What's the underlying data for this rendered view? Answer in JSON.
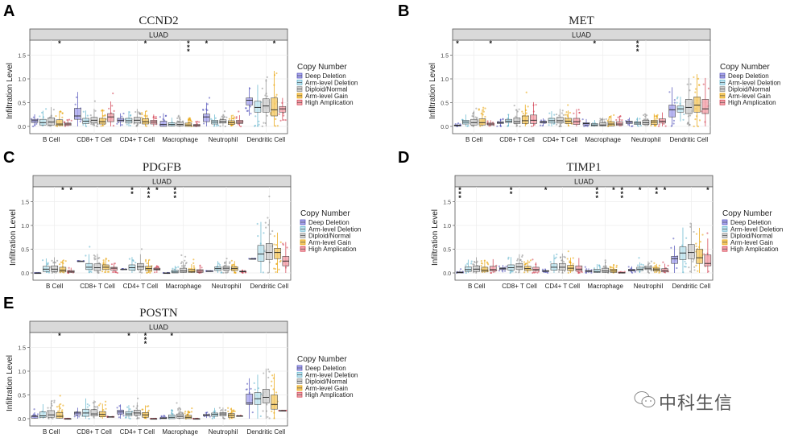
{
  "common": {
    "strip_label": "LUAD",
    "ylabel": "Infiltration Level",
    "yticks": [
      "0.0",
      "0.5",
      "1.0",
      "1.5"
    ],
    "categories": [
      "B Cell",
      "CD8+ T Cell",
      "CD4+ T Cell",
      "Macrophage",
      "Neutrophil",
      "Dendritic Cell"
    ],
    "legend_title": "Copy Number",
    "groups": [
      "Deep Deletion",
      "Arm-level Deletion",
      "Diploid/Normal",
      "Arm-level Gain",
      "High Amplication"
    ],
    "group_colors": [
      "#4b4bb8",
      "#5fb3cc",
      "#8c8c8c",
      "#e8a000",
      "#d23a4c"
    ],
    "group_fills": [
      "#a9a6ee",
      "#bfe3ee",
      "#cfcfcf",
      "#f4cb6a",
      "#f2a3ab"
    ]
  },
  "watermark": "中科生信",
  "chart_data": [
    {
      "panel": "A",
      "type": "box",
      "title": "CCND2",
      "facet": "LUAD",
      "ylabel": "Infiltration Level",
      "ylim": [
        0,
        1.8
      ],
      "categories": [
        "B Cell",
        "CD8+ T Cell",
        "CD4+ T Cell",
        "Macrophage",
        "Neutrophil",
        "Dendritic Cell"
      ],
      "boxes_q1_median_q3": [
        [
          [
            0.08,
            0.12,
            0.15
          ],
          [
            0.03,
            0.08,
            0.15
          ],
          [
            0.03,
            0.09,
            0.18
          ],
          [
            0.02,
            0.05,
            0.14
          ],
          [
            0.02,
            0.05,
            0.07
          ]
        ],
        [
          [
            0.15,
            0.22,
            0.38
          ],
          [
            0.06,
            0.11,
            0.17
          ],
          [
            0.07,
            0.13,
            0.19
          ],
          [
            0.05,
            0.1,
            0.17
          ],
          [
            0.1,
            0.2,
            0.27
          ]
        ],
        [
          [
            0.1,
            0.13,
            0.17
          ],
          [
            0.07,
            0.12,
            0.17
          ],
          [
            0.07,
            0.13,
            0.19
          ],
          [
            0.05,
            0.1,
            0.16
          ],
          [
            0.05,
            0.09,
            0.13
          ]
        ],
        [
          [
            0.0,
            0.04,
            0.11
          ],
          [
            0.01,
            0.04,
            0.08
          ],
          [
            0.01,
            0.04,
            0.09
          ],
          [
            0.0,
            0.03,
            0.07
          ],
          [
            0.0,
            0.02,
            0.04
          ]
        ],
        [
          [
            0.1,
            0.2,
            0.26
          ],
          [
            0.05,
            0.09,
            0.13
          ],
          [
            0.07,
            0.1,
            0.14
          ],
          [
            0.04,
            0.08,
            0.12
          ],
          [
            0.06,
            0.09,
            0.13
          ]
        ],
        [
          [
            0.45,
            0.55,
            0.6
          ],
          [
            0.3,
            0.4,
            0.53
          ],
          [
            0.3,
            0.43,
            0.58
          ],
          [
            0.22,
            0.35,
            0.6
          ],
          [
            0.3,
            0.37,
            0.42
          ]
        ]
      ],
      "significance": [
        {
          "category": 0,
          "group": 3,
          "label": "*"
        },
        {
          "category": 2,
          "group": 3,
          "label": "*"
        },
        {
          "category": 3,
          "group": 3,
          "label": "***"
        },
        {
          "category": 4,
          "group": 0,
          "label": "*"
        },
        {
          "category": 5,
          "group": 3,
          "label": "*"
        }
      ]
    },
    {
      "panel": "B",
      "type": "box",
      "title": "MET",
      "facet": "LUAD",
      "ylabel": "Infiltration Level",
      "ylim": [
        0,
        1.8
      ],
      "categories": [
        "B Cell",
        "CD8+ T Cell",
        "CD4+ T Cell",
        "Macrophage",
        "Neutrophil",
        "Dendritic Cell"
      ],
      "boxes_q1_median_q3": [
        [
          [
            0.01,
            0.02,
            0.03
          ],
          [
            0.05,
            0.09,
            0.13
          ],
          [
            0.03,
            0.08,
            0.15
          ],
          [
            0.03,
            0.08,
            0.16
          ],
          [
            0.03,
            0.05,
            0.07
          ]
        ],
        [
          [
            0.06,
            0.08,
            0.1
          ],
          [
            0.08,
            0.11,
            0.15
          ],
          [
            0.06,
            0.1,
            0.18
          ],
          [
            0.06,
            0.12,
            0.22
          ],
          [
            0.06,
            0.13,
            0.24
          ]
        ],
        [
          [
            0.07,
            0.09,
            0.11
          ],
          [
            0.07,
            0.12,
            0.17
          ],
          [
            0.07,
            0.12,
            0.19
          ],
          [
            0.06,
            0.11,
            0.17
          ],
          [
            0.04,
            0.1,
            0.17
          ]
        ],
        [
          [
            0.03,
            0.06,
            0.08
          ],
          [
            0.01,
            0.03,
            0.06
          ],
          [
            0.01,
            0.03,
            0.08
          ],
          [
            0.01,
            0.05,
            0.1
          ],
          [
            0.02,
            0.05,
            0.1
          ]
        ],
        [
          [
            0.06,
            0.09,
            0.11
          ],
          [
            0.04,
            0.07,
            0.1
          ],
          [
            0.04,
            0.08,
            0.13
          ],
          [
            0.04,
            0.09,
            0.13
          ],
          [
            0.07,
            0.11,
            0.16
          ]
        ],
        [
          [
            0.2,
            0.35,
            0.45
          ],
          [
            0.3,
            0.37,
            0.43
          ],
          [
            0.27,
            0.4,
            0.57
          ],
          [
            0.3,
            0.45,
            0.62
          ],
          [
            0.27,
            0.37,
            0.57
          ]
        ]
      ],
      "significance": [
        {
          "category": 0,
          "group": 0,
          "label": "*"
        },
        {
          "category": 0,
          "group": 4,
          "label": "*"
        },
        {
          "category": 3,
          "group": 1,
          "label": "*"
        },
        {
          "category": 4,
          "group": 1,
          "label": "***"
        }
      ]
    },
    {
      "panel": "C",
      "type": "box",
      "title": "PDGFB",
      "facet": "LUAD",
      "ylabel": "Infiltration Level",
      "ylim": [
        0,
        1.8
      ],
      "categories": [
        "B Cell",
        "CD8+ T Cell",
        "CD4+ T Cell",
        "Macrophage",
        "Neutrophil",
        "Dendritic Cell"
      ],
      "boxes_q1_median_q3": [
        [
          [
            0.0,
            0.0,
            0.0
          ],
          [
            0.03,
            0.08,
            0.14
          ],
          [
            0.03,
            0.08,
            0.15
          ],
          [
            0.02,
            0.06,
            0.12
          ],
          [
            0.01,
            0.03,
            0.05
          ]
        ],
        [
          [
            0.25,
            0.25,
            0.25
          ],
          [
            0.07,
            0.12,
            0.2
          ],
          [
            0.05,
            0.11,
            0.19
          ],
          [
            0.07,
            0.12,
            0.17
          ],
          [
            0.06,
            0.1,
            0.12
          ]
        ],
        [
          [
            0.08,
            0.08,
            0.08
          ],
          [
            0.06,
            0.11,
            0.17
          ],
          [
            0.07,
            0.13,
            0.2
          ],
          [
            0.05,
            0.09,
            0.14
          ],
          [
            0.06,
            0.08,
            0.1
          ]
        ],
        [
          [
            0.0,
            0.0,
            0.0
          ],
          [
            0.0,
            0.02,
            0.06
          ],
          [
            0.01,
            0.04,
            0.1
          ],
          [
            0.01,
            0.03,
            0.08
          ],
          [
            0.01,
            0.04,
            0.07
          ]
        ],
        [
          [
            0.04,
            0.04,
            0.04
          ],
          [
            0.05,
            0.09,
            0.13
          ],
          [
            0.06,
            0.1,
            0.14
          ],
          [
            0.05,
            0.09,
            0.13
          ],
          [
            0.02,
            0.03,
            0.04
          ]
        ],
        [
          [
            0.3,
            0.3,
            0.3
          ],
          [
            0.25,
            0.4,
            0.58
          ],
          [
            0.28,
            0.43,
            0.62
          ],
          [
            0.3,
            0.43,
            0.52
          ],
          [
            0.15,
            0.25,
            0.35
          ]
        ]
      ],
      "significance": [
        {
          "category": 0,
          "group": 3,
          "label": "*"
        },
        {
          "category": 0,
          "group": 4,
          "label": "*"
        },
        {
          "category": 2,
          "group": 1,
          "label": "**"
        },
        {
          "category": 2,
          "group": 3,
          "label": "***"
        },
        {
          "category": 2,
          "group": 4,
          "label": "*"
        },
        {
          "category": 3,
          "group": 1,
          "label": "***"
        }
      ]
    },
    {
      "panel": "D",
      "type": "box",
      "title": "TIMP1",
      "facet": "LUAD",
      "ylabel": "Infiltration Level",
      "ylim": [
        0,
        1.8
      ],
      "categories": [
        "B Cell",
        "CD8+ T Cell",
        "CD4+ T Cell",
        "Macrophage",
        "Neutrophil",
        "Dendritic Cell"
      ],
      "boxes_q1_median_q3": [
        [
          [
            0.0,
            0.01,
            0.02
          ],
          [
            0.03,
            0.07,
            0.13
          ],
          [
            0.03,
            0.08,
            0.15
          ],
          [
            0.02,
            0.06,
            0.12
          ],
          [
            0.04,
            0.07,
            0.14
          ]
        ],
        [
          [
            0.07,
            0.09,
            0.11
          ],
          [
            0.06,
            0.11,
            0.17
          ],
          [
            0.07,
            0.13,
            0.2
          ],
          [
            0.05,
            0.09,
            0.14
          ],
          [
            0.05,
            0.07,
            0.12
          ]
        ],
        [
          [
            0.03,
            0.04,
            0.05
          ],
          [
            0.06,
            0.12,
            0.19
          ],
          [
            0.06,
            0.12,
            0.2
          ],
          [
            0.05,
            0.1,
            0.16
          ],
          [
            0.04,
            0.08,
            0.15
          ]
        ],
        [
          [
            0.02,
            0.04,
            0.05
          ],
          [
            0.01,
            0.03,
            0.08
          ],
          [
            0.01,
            0.04,
            0.1
          ],
          [
            0.01,
            0.04,
            0.08
          ],
          [
            0.0,
            0.0,
            0.01
          ]
        ],
        [
          [
            0.04,
            0.06,
            0.08
          ],
          [
            0.05,
            0.08,
            0.12
          ],
          [
            0.07,
            0.1,
            0.14
          ],
          [
            0.04,
            0.07,
            0.1
          ],
          [
            0.02,
            0.05,
            0.09
          ]
        ],
        [
          [
            0.2,
            0.3,
            0.35
          ],
          [
            0.28,
            0.42,
            0.55
          ],
          [
            0.3,
            0.43,
            0.6
          ],
          [
            0.2,
            0.32,
            0.5
          ],
          [
            0.15,
            0.2,
            0.38
          ]
        ]
      ],
      "significance": [
        {
          "category": 0,
          "group": 0,
          "label": "***"
        },
        {
          "category": 1,
          "group": 1,
          "label": "**"
        },
        {
          "category": 2,
          "group": 0,
          "label": "*"
        },
        {
          "category": 3,
          "group": 1,
          "label": "***"
        },
        {
          "category": 3,
          "group": 3,
          "label": "*"
        },
        {
          "category": 3,
          "group": 4,
          "label": "***"
        },
        {
          "category": 4,
          "group": 1,
          "label": "*"
        },
        {
          "category": 4,
          "group": 3,
          "label": "**"
        },
        {
          "category": 4,
          "group": 4,
          "label": "*"
        },
        {
          "category": 5,
          "group": 4,
          "label": "*"
        }
      ]
    },
    {
      "panel": "E",
      "type": "box",
      "title": "POSTN",
      "facet": "LUAD",
      "ylabel": "Infiltration Level",
      "ylim": [
        0,
        1.8
      ],
      "categories": [
        "B Cell",
        "CD8+ T Cell",
        "CD4+ T Cell",
        "Macrophage",
        "Neutrophil",
        "Dendritic Cell"
      ],
      "boxes_q1_median_q3": [
        [
          [
            0.01,
            0.05,
            0.06
          ],
          [
            0.03,
            0.06,
            0.14
          ],
          [
            0.03,
            0.08,
            0.17
          ],
          [
            0.01,
            0.05,
            0.13
          ],
          [
            0.0,
            0.0,
            0.0
          ]
        ],
        [
          [
            0.08,
            0.12,
            0.14
          ],
          [
            0.05,
            0.12,
            0.2
          ],
          [
            0.06,
            0.1,
            0.19
          ],
          [
            0.04,
            0.09,
            0.15
          ],
          [
            0.04,
            0.04,
            0.04
          ]
        ],
        [
          [
            0.1,
            0.14,
            0.18
          ],
          [
            0.06,
            0.1,
            0.15
          ],
          [
            0.07,
            0.12,
            0.18
          ],
          [
            0.03,
            0.08,
            0.13
          ],
          [
            0.0,
            0.0,
            0.0
          ]
        ],
        [
          [
            0.0,
            0.01,
            0.03
          ],
          [
            0.0,
            0.03,
            0.08
          ],
          [
            0.01,
            0.05,
            0.1
          ],
          [
            0.0,
            0.03,
            0.07
          ],
          [
            0.0,
            0.0,
            0.0
          ]
        ],
        [
          [
            0.06,
            0.07,
            0.09
          ],
          [
            0.05,
            0.09,
            0.12
          ],
          [
            0.06,
            0.1,
            0.13
          ],
          [
            0.03,
            0.07,
            0.11
          ],
          [
            0.06,
            0.06,
            0.06
          ]
        ],
        [
          [
            0.3,
            0.33,
            0.52
          ],
          [
            0.3,
            0.42,
            0.55
          ],
          [
            0.33,
            0.45,
            0.62
          ],
          [
            0.2,
            0.3,
            0.5
          ],
          [
            0.17,
            0.17,
            0.17
          ]
        ]
      ],
      "significance": [
        {
          "category": 0,
          "group": 3,
          "label": "*"
        },
        {
          "category": 2,
          "group": 1,
          "label": "*"
        },
        {
          "category": 2,
          "group": 3,
          "label": "***"
        },
        {
          "category": 3,
          "group": 1,
          "label": "*"
        }
      ]
    }
  ]
}
